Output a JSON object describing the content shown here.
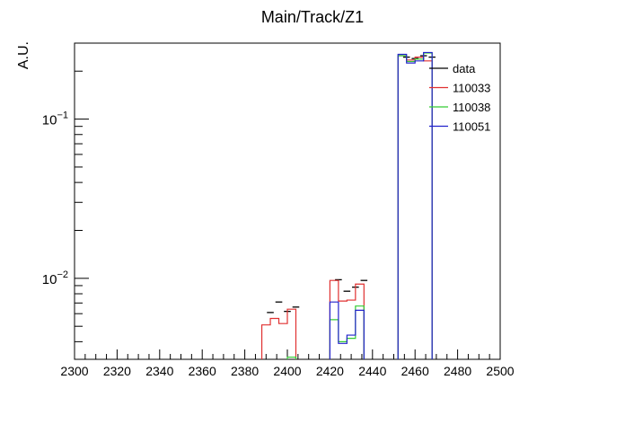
{
  "chart_data": {
    "type": "step",
    "title": "Main/Track/Z1",
    "xlabel": "",
    "ylabel": "A.U.",
    "xlim": [
      2300,
      2500
    ],
    "ylim": [
      0.0031,
      0.3
    ],
    "ylog": true,
    "x_ticks": [
      2300,
      2320,
      2340,
      2360,
      2380,
      2400,
      2420,
      2440,
      2460,
      2480,
      2500
    ],
    "y_tick_labels": [
      {
        "value": 0.1,
        "base": "10",
        "exp": "−1"
      },
      {
        "value": 0.01,
        "base": "10",
        "exp": "−2"
      }
    ],
    "legend": {
      "position": "top-right",
      "entries": [
        {
          "name": "data",
          "color": "#000000"
        },
        {
          "name": "110033",
          "color": "#e03030"
        },
        {
          "name": "110038",
          "color": "#33cc33"
        },
        {
          "name": "110051",
          "color": "#2222cc"
        }
      ]
    },
    "bin_width": 4,
    "series": [
      {
        "name": "data",
        "color": "#000000",
        "style": "markers",
        "points": [
          {
            "x": 2392,
            "y": 0.0061
          },
          {
            "x": 2396,
            "y": 0.0071
          },
          {
            "x": 2400,
            "y": 0.0062
          },
          {
            "x": 2404,
            "y": 0.0066
          },
          {
            "x": 2424,
            "y": 0.0098
          },
          {
            "x": 2428,
            "y": 0.0083
          },
          {
            "x": 2432,
            "y": 0.0088
          },
          {
            "x": 2436,
            "y": 0.0097
          },
          {
            "x": 2456,
            "y": 0.245
          },
          {
            "x": 2460,
            "y": 0.24
          },
          {
            "x": 2464,
            "y": 0.25
          },
          {
            "x": 2468,
            "y": 0.245
          }
        ]
      },
      {
        "name": "110033",
        "color": "#e03030",
        "style": "step",
        "edges": [
          2388,
          2392,
          2396,
          2400,
          2404,
          2408,
          2420,
          2424,
          2428,
          2432,
          2436,
          2440,
          2452,
          2456,
          2460,
          2464,
          2468
        ],
        "values": [
          0.0051,
          0.0056,
          0.0052,
          0.0064,
          0,
          0,
          0.0097,
          0.0072,
          0.0073,
          0.0092,
          0,
          0,
          0.25,
          0.235,
          0.245,
          0.232
        ]
      },
      {
        "name": "110038",
        "color": "#33cc33",
        "style": "step",
        "edges": [
          2400,
          2404,
          2408,
          2420,
          2424,
          2428,
          2432,
          2436,
          2440,
          2452,
          2456,
          2460,
          2464,
          2468
        ],
        "values": [
          0.0032,
          0,
          0,
          0.0055,
          0.004,
          0.0042,
          0.0067,
          0,
          0,
          0.25,
          0.23,
          0.238,
          0.26
        ]
      },
      {
        "name": "110051",
        "color": "#2222cc",
        "style": "step",
        "edges": [
          2420,
          2424,
          2428,
          2432,
          2436,
          2440,
          2452,
          2456,
          2460,
          2464,
          2468
        ],
        "values": [
          0.0071,
          0.0039,
          0.0044,
          0.0063,
          0,
          0,
          0.255,
          0.225,
          0.232,
          0.262
        ]
      }
    ]
  }
}
